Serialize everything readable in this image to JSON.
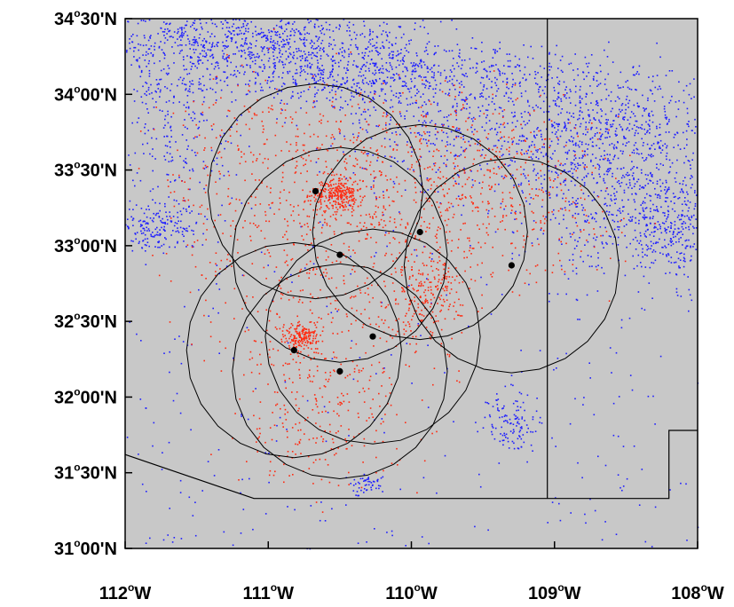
{
  "map": {
    "lon_range": [
      -112,
      -108
    ],
    "lat_range": [
      31.0,
      34.5
    ],
    "background_color": "#c8c8c8",
    "x_tick_labels": [
      {
        "lon": -112,
        "num": "112",
        "sup": "o",
        "suffix": "W"
      },
      {
        "lon": -111,
        "num": "111",
        "sup": "o",
        "suffix": "W"
      },
      {
        "lon": -110,
        "num": "110",
        "sup": "o",
        "suffix": "W"
      },
      {
        "lon": -109,
        "num": "109",
        "sup": "o",
        "suffix": "W"
      },
      {
        "lon": -108,
        "num": "108",
        "sup": "o",
        "suffix": "W"
      }
    ],
    "y_tick_labels": [
      {
        "lat": 34.5,
        "num": "34",
        "sup": "o",
        "suffix": "30'N"
      },
      {
        "lat": 34.0,
        "num": "34",
        "sup": "o",
        "suffix": "00'N"
      },
      {
        "lat": 33.5,
        "num": "33",
        "sup": "o",
        "suffix": "30'N"
      },
      {
        "lat": 33.0,
        "num": "33",
        "sup": "o",
        "suffix": "00'N"
      },
      {
        "lat": 32.5,
        "num": "32",
        "sup": "o",
        "suffix": "30'N"
      },
      {
        "lat": 32.0,
        "num": "32",
        "sup": "o",
        "suffix": "00'N"
      },
      {
        "lat": 31.5,
        "num": "31",
        "sup": "o",
        "suffix": "30'N"
      },
      {
        "lat": 31.0,
        "num": "31",
        "sup": "o",
        "suffix": "00'N"
      }
    ],
    "stations": [
      {
        "lon": -110.67,
        "lat": 33.36
      },
      {
        "lon": -109.94,
        "lat": 33.09
      },
      {
        "lon": -110.5,
        "lat": 32.94
      },
      {
        "lon": -109.3,
        "lat": 32.87
      },
      {
        "lon": -110.27,
        "lat": 32.4
      },
      {
        "lon": -110.82,
        "lat": 32.31
      },
      {
        "lon": -110.5,
        "lat": 32.17
      }
    ],
    "circle_radius_deg": 0.71,
    "circle_color": "#000000",
    "state_border": [
      [
        -112.0,
        31.62
      ],
      [
        -111.1,
        31.33
      ],
      [
        -108.2,
        31.33
      ],
      [
        -108.2,
        31.78
      ],
      [
        -108.0,
        31.78
      ]
    ],
    "meridian_line_lon": -109.05,
    "blue_point_color": "#1e1eff",
    "red_point_color": "#ff2a10"
  }
}
